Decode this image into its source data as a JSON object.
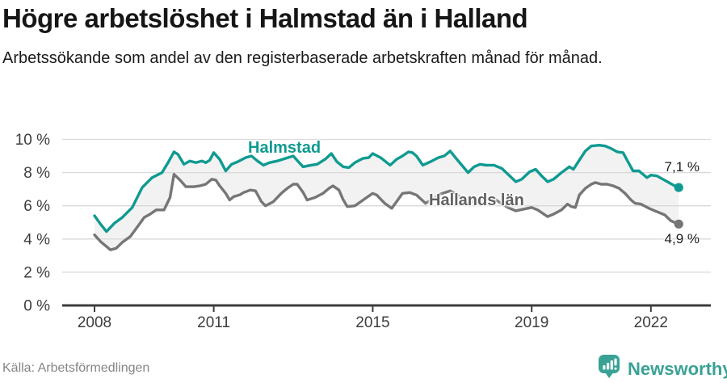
{
  "header": {
    "title": "Högre arbetslöshet i Halmstad än i Halland",
    "subtitle": "Arbetssökande som andel av den registerbaserade arbetskraften månad för månad."
  },
  "chart_data": {
    "type": "line",
    "title": "Högre arbetslöshet i Halmstad än i Halland",
    "subtitle": "Arbetssökande som andel av den registerbaserade arbetskraften månad för månad.",
    "unit": "%",
    "grid": true,
    "legend_position": "inline-labels",
    "band_fill": "#f2f2f2",
    "x_axis": {
      "ticks": [
        2008,
        2011,
        2015,
        2019,
        2022
      ],
      "range": [
        2007.85,
        2022.95
      ]
    },
    "y_axis": {
      "ticks": [
        0,
        2,
        4,
        6,
        8,
        10
      ],
      "tick_labels": [
        "0 %",
        "2 %",
        "4 %",
        "6 %",
        "8 %",
        "10 %"
      ],
      "range": [
        0,
        10
      ]
    },
    "series": [
      {
        "id": "halmstad",
        "name": "Halmstad",
        "color": "#0f9a91",
        "label_color": "#0f9a91",
        "end_label": "7,1 %",
        "end_value": 7.1,
        "points": [
          [
            2008.0,
            5.4
          ],
          [
            2008.15,
            4.9
          ],
          [
            2008.3,
            4.45
          ],
          [
            2008.5,
            4.95
          ],
          [
            2008.7,
            5.3
          ],
          [
            2008.95,
            5.9
          ],
          [
            2009.2,
            7.1
          ],
          [
            2009.45,
            7.7
          ],
          [
            2009.7,
            8.0
          ],
          [
            2009.85,
            8.6
          ],
          [
            2010.0,
            9.25
          ],
          [
            2010.1,
            9.1
          ],
          [
            2010.25,
            8.5
          ],
          [
            2010.4,
            8.7
          ],
          [
            2010.55,
            8.6
          ],
          [
            2010.7,
            8.7
          ],
          [
            2010.8,
            8.6
          ],
          [
            2010.9,
            8.75
          ],
          [
            2011.0,
            9.2
          ],
          [
            2011.15,
            8.8
          ],
          [
            2011.3,
            8.1
          ],
          [
            2011.45,
            8.5
          ],
          [
            2011.6,
            8.65
          ],
          [
            2011.8,
            8.9
          ],
          [
            2011.95,
            9.0
          ],
          [
            2012.1,
            8.7
          ],
          [
            2012.25,
            8.45
          ],
          [
            2012.4,
            8.6
          ],
          [
            2012.6,
            8.7
          ],
          [
            2012.8,
            8.85
          ],
          [
            2013.0,
            9.0
          ],
          [
            2013.15,
            8.6
          ],
          [
            2013.25,
            8.35
          ],
          [
            2013.45,
            8.45
          ],
          [
            2013.6,
            8.5
          ],
          [
            2013.8,
            8.8
          ],
          [
            2013.96,
            9.15
          ],
          [
            2014.1,
            8.65
          ],
          [
            2014.26,
            8.35
          ],
          [
            2014.4,
            8.3
          ],
          [
            2014.55,
            8.6
          ],
          [
            2014.75,
            8.85
          ],
          [
            2014.9,
            8.9
          ],
          [
            2015.0,
            9.15
          ],
          [
            2015.2,
            8.9
          ],
          [
            2015.44,
            8.45
          ],
          [
            2015.6,
            8.8
          ],
          [
            2015.75,
            9.0
          ],
          [
            2015.9,
            9.25
          ],
          [
            2016.0,
            9.2
          ],
          [
            2016.1,
            9.0
          ],
          [
            2016.26,
            8.45
          ],
          [
            2016.45,
            8.65
          ],
          [
            2016.65,
            8.9
          ],
          [
            2016.8,
            9.0
          ],
          [
            2016.95,
            9.3
          ],
          [
            2017.1,
            8.85
          ],
          [
            2017.4,
            8.0
          ],
          [
            2017.55,
            8.35
          ],
          [
            2017.7,
            8.5
          ],
          [
            2017.85,
            8.45
          ],
          [
            2018.05,
            8.45
          ],
          [
            2018.25,
            8.25
          ],
          [
            2018.45,
            7.8
          ],
          [
            2018.6,
            7.45
          ],
          [
            2018.75,
            7.6
          ],
          [
            2018.95,
            8.05
          ],
          [
            2019.1,
            8.2
          ],
          [
            2019.25,
            7.8
          ],
          [
            2019.4,
            7.45
          ],
          [
            2019.55,
            7.6
          ],
          [
            2019.75,
            8.0
          ],
          [
            2019.95,
            8.35
          ],
          [
            2020.05,
            8.2
          ],
          [
            2020.2,
            8.75
          ],
          [
            2020.35,
            9.3
          ],
          [
            2020.5,
            9.6
          ],
          [
            2020.7,
            9.65
          ],
          [
            2020.85,
            9.6
          ],
          [
            2021.0,
            9.45
          ],
          [
            2021.15,
            9.25
          ],
          [
            2021.3,
            9.2
          ],
          [
            2021.4,
            8.75
          ],
          [
            2021.55,
            8.1
          ],
          [
            2021.7,
            8.1
          ],
          [
            2021.9,
            7.7
          ],
          [
            2022.0,
            7.85
          ],
          [
            2022.15,
            7.8
          ],
          [
            2022.3,
            7.6
          ],
          [
            2022.45,
            7.4
          ],
          [
            2022.6,
            7.2
          ],
          [
            2022.7,
            7.1
          ]
        ]
      },
      {
        "id": "hallands-lan",
        "name": "Hallands län",
        "color": "#767676",
        "label_color": "#616161",
        "end_label": "4,9 %",
        "end_value": 4.9,
        "points": [
          [
            2008.0,
            4.25
          ],
          [
            2008.15,
            3.85
          ],
          [
            2008.4,
            3.35
          ],
          [
            2008.55,
            3.45
          ],
          [
            2008.7,
            3.8
          ],
          [
            2008.9,
            4.15
          ],
          [
            2009.1,
            4.8
          ],
          [
            2009.25,
            5.3
          ],
          [
            2009.4,
            5.5
          ],
          [
            2009.55,
            5.75
          ],
          [
            2009.75,
            5.75
          ],
          [
            2009.9,
            6.5
          ],
          [
            2010.0,
            7.9
          ],
          [
            2010.15,
            7.55
          ],
          [
            2010.3,
            7.15
          ],
          [
            2010.5,
            7.15
          ],
          [
            2010.65,
            7.2
          ],
          [
            2010.8,
            7.3
          ],
          [
            2010.95,
            7.6
          ],
          [
            2011.05,
            7.55
          ],
          [
            2011.15,
            7.2
          ],
          [
            2011.3,
            6.75
          ],
          [
            2011.4,
            6.35
          ],
          [
            2011.5,
            6.55
          ],
          [
            2011.65,
            6.65
          ],
          [
            2011.75,
            6.8
          ],
          [
            2011.92,
            6.95
          ],
          [
            2012.05,
            6.9
          ],
          [
            2012.2,
            6.25
          ],
          [
            2012.3,
            6.0
          ],
          [
            2012.5,
            6.25
          ],
          [
            2012.7,
            6.75
          ],
          [
            2012.85,
            7.05
          ],
          [
            2013.0,
            7.3
          ],
          [
            2013.1,
            7.3
          ],
          [
            2013.25,
            6.8
          ],
          [
            2013.35,
            6.35
          ],
          [
            2013.55,
            6.5
          ],
          [
            2013.75,
            6.75
          ],
          [
            2013.9,
            7.05
          ],
          [
            2014.0,
            7.2
          ],
          [
            2014.15,
            6.95
          ],
          [
            2014.25,
            6.4
          ],
          [
            2014.36,
            5.95
          ],
          [
            2014.55,
            6.0
          ],
          [
            2014.7,
            6.25
          ],
          [
            2014.85,
            6.5
          ],
          [
            2015.0,
            6.75
          ],
          [
            2015.1,
            6.65
          ],
          [
            2015.3,
            6.15
          ],
          [
            2015.48,
            5.85
          ],
          [
            2015.6,
            6.25
          ],
          [
            2015.75,
            6.75
          ],
          [
            2015.93,
            6.8
          ],
          [
            2016.1,
            6.65
          ],
          [
            2016.33,
            6.15
          ],
          [
            2016.5,
            6.4
          ],
          [
            2016.7,
            6.7
          ],
          [
            2016.95,
            6.9
          ],
          [
            2017.1,
            6.7
          ],
          [
            2017.4,
            6.2
          ],
          [
            2017.6,
            6.3
          ],
          [
            2017.8,
            6.4
          ],
          [
            2018.0,
            6.5
          ],
          [
            2018.2,
            6.2
          ],
          [
            2018.4,
            5.9
          ],
          [
            2018.6,
            5.7
          ],
          [
            2018.8,
            5.8
          ],
          [
            2019.0,
            5.9
          ],
          [
            2019.15,
            5.75
          ],
          [
            2019.4,
            5.35
          ],
          [
            2019.55,
            5.5
          ],
          [
            2019.75,
            5.75
          ],
          [
            2019.9,
            6.1
          ],
          [
            2020.0,
            5.95
          ],
          [
            2020.1,
            5.9
          ],
          [
            2020.2,
            6.65
          ],
          [
            2020.35,
            7.05
          ],
          [
            2020.5,
            7.3
          ],
          [
            2020.6,
            7.4
          ],
          [
            2020.75,
            7.3
          ],
          [
            2020.9,
            7.3
          ],
          [
            2021.05,
            7.2
          ],
          [
            2021.2,
            7.05
          ],
          [
            2021.35,
            6.75
          ],
          [
            2021.5,
            6.35
          ],
          [
            2021.6,
            6.15
          ],
          [
            2021.75,
            6.1
          ],
          [
            2021.95,
            5.85
          ],
          [
            2022.1,
            5.7
          ],
          [
            2022.2,
            5.6
          ],
          [
            2022.35,
            5.45
          ],
          [
            2022.5,
            5.1
          ],
          [
            2022.6,
            5.0
          ],
          [
            2022.7,
            4.9
          ]
        ]
      }
    ],
    "colors": {
      "accent_teal": "#0f9a91",
      "series_gray": "#767676",
      "grid": "#d9d9d9",
      "axis": "#3d3d3d",
      "band": "#f2f2f2",
      "brand_teal": "#3aa295"
    }
  },
  "footer": {
    "source": "Källa: Arbetsförmedlingen",
    "brand": "Newsworthy"
  }
}
